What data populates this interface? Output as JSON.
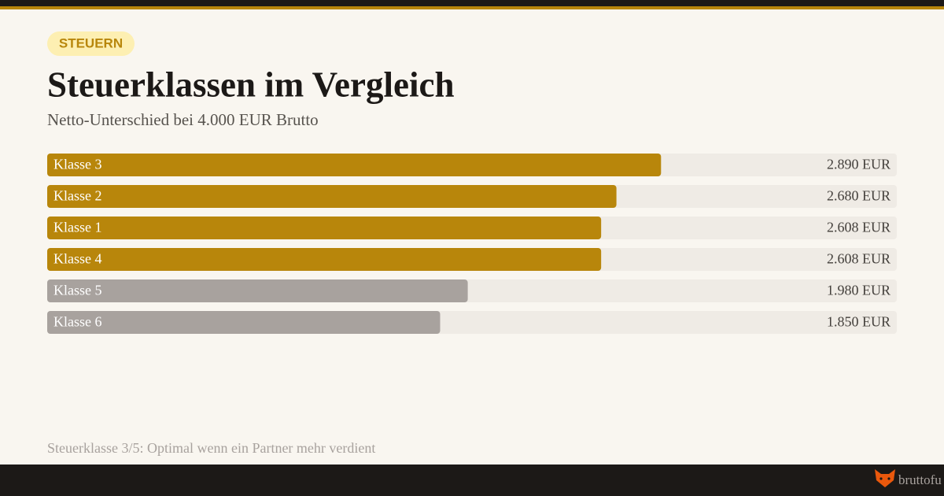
{
  "badge": "STEUERN",
  "footnote": "Steuerklasse 3/5: Optimal wenn ein Partner mehr verdient",
  "brand": "bruttofu",
  "chart_data": {
    "type": "bar",
    "orientation": "horizontal",
    "title": "Steuerklassen im Vergleich",
    "subtitle": "Netto-Unterschied bei 4.000 EUR Brutto",
    "categories": [
      "Klasse 3",
      "Klasse 2",
      "Klasse 1",
      "Klasse 4",
      "Klasse 5",
      "Klasse 6"
    ],
    "values": [
      2890,
      2680,
      2608,
      2608,
      1980,
      1850
    ],
    "value_labels": [
      "2.890 EUR",
      "2.680 EUR",
      "2.608 EUR",
      "2.608 EUR",
      "1.980 EUR",
      "1.850 EUR"
    ],
    "colors": [
      "#b8860b",
      "#b8860b",
      "#b8860b",
      "#b8860b",
      "#a8a29e",
      "#a8a29e"
    ],
    "xlim": [
      0,
      4000
    ]
  }
}
